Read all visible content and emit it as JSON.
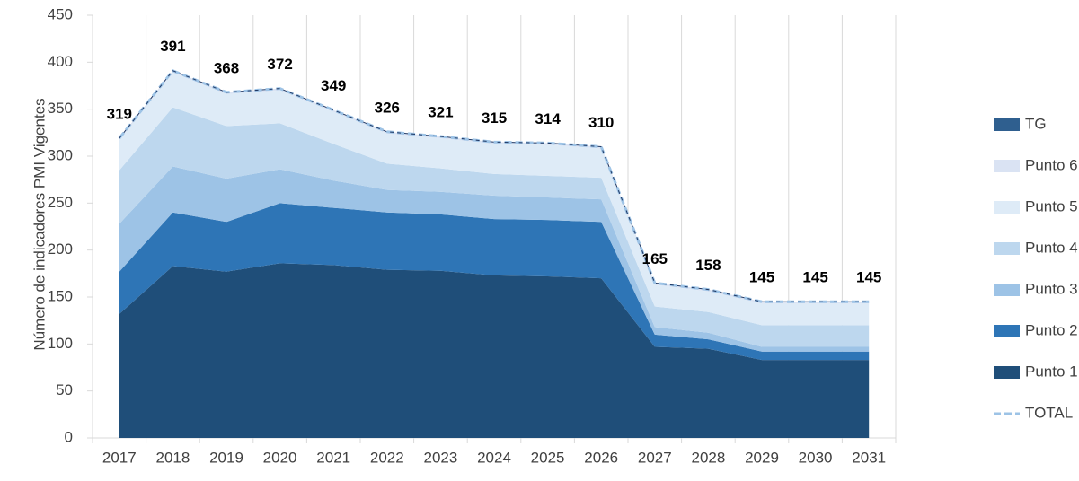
{
  "chart_data": {
    "type": "area",
    "stacked": true,
    "y_label": "Número de indicadores PMI Vigentes",
    "categories": [
      "2017",
      "2018",
      "2019",
      "2020",
      "2021",
      "2022",
      "2023",
      "2024",
      "2025",
      "2026",
      "2027",
      "2028",
      "2029",
      "2030",
      "2031"
    ],
    "series": [
      {
        "name": "Punto 1",
        "color": "#1f4e79",
        "values": [
          132,
          183,
          177,
          186,
          184,
          179,
          178,
          173,
          172,
          170,
          97,
          95,
          83,
          83,
          83
        ]
      },
      {
        "name": "Punto 2",
        "color": "#2e75b6",
        "values": [
          45,
          57,
          53,
          64,
          61,
          61,
          60,
          60,
          60,
          60,
          13,
          10,
          9,
          9,
          9
        ]
      },
      {
        "name": "Punto 3",
        "color": "#9dc3e6",
        "values": [
          51,
          49,
          46,
          36,
          29,
          24,
          24,
          25,
          24,
          24,
          8,
          7,
          5,
          5,
          5
        ]
      },
      {
        "name": "Punto 4",
        "color": "#bdd7ee",
        "values": [
          57,
          63,
          56,
          49,
          39,
          28,
          25,
          23,
          23,
          23,
          22,
          22,
          23,
          23,
          23
        ]
      },
      {
        "name": "Punto 5",
        "color": "#deebf7",
        "values": [
          32,
          37,
          34,
          35,
          34,
          32,
          32,
          32,
          33,
          31,
          23,
          22,
          23,
          23,
          23
        ]
      },
      {
        "name": "Punto 6",
        "color": "#dae3f3",
        "values": [
          2,
          2,
          2,
          2,
          2,
          2,
          2,
          2,
          2,
          2,
          2,
          2,
          2,
          2,
          2
        ]
      },
      {
        "name": "TG",
        "color": "#2f5f8f",
        "values": [
          0,
          0,
          0,
          0,
          0,
          0,
          0,
          0,
          0,
          0,
          0,
          0,
          0,
          0,
          0
        ]
      }
    ],
    "total": {
      "name": "TOTAL",
      "color": "#9dc3e6",
      "values": [
        319,
        391,
        368,
        372,
        349,
        326,
        321,
        315,
        314,
        310,
        165,
        158,
        145,
        145,
        145
      ]
    },
    "ylim": [
      0,
      450
    ],
    "yticks": [
      0,
      50,
      100,
      150,
      200,
      250,
      300,
      350,
      400,
      450
    ],
    "legend": "right"
  }
}
